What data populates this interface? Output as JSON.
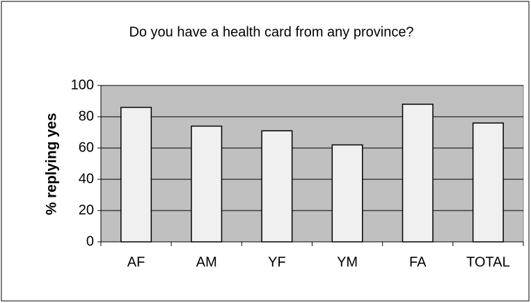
{
  "chart_data": {
    "type": "bar",
    "title": "Do you have a health card from any province?",
    "y_label": "% replying yes",
    "categories": [
      "AF",
      "AM",
      "YF",
      "YM",
      "FA",
      "TOTAL"
    ],
    "values": [
      86,
      74,
      71,
      62,
      88,
      76
    ],
    "color": "#f0f0f0",
    "ylim": [
      0,
      100
    ],
    "yticks": [
      0,
      20,
      40,
      60,
      80,
      100
    ],
    "grid": true
  }
}
